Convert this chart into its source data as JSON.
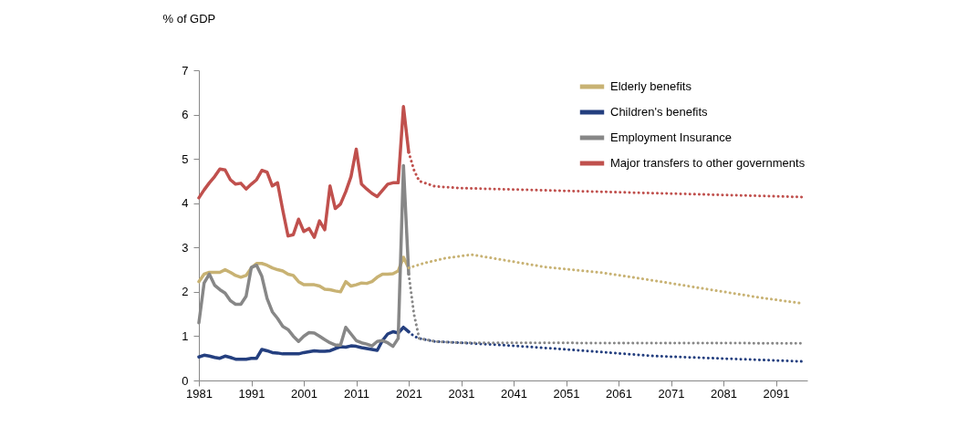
{
  "chart_data": {
    "type": "line",
    "ylabel": "% of GDP",
    "xlim": [
      1981,
      2097
    ],
    "xticks": [
      1981,
      1991,
      2001,
      2011,
      2021,
      2031,
      2041,
      2051,
      2061,
      2071,
      2081,
      2091
    ],
    "ylim": [
      0,
      7
    ],
    "yticks": [
      0,
      1,
      2,
      3,
      4,
      5,
      6,
      7
    ],
    "grid": false,
    "legend": "top right",
    "marker": "none",
    "series": [
      {
        "name": "Elderly benefits",
        "color": "#c8b273",
        "line_style": "solid",
        "x": [
          1981,
          1982,
          1983,
          1984,
          1985,
          1986,
          1987,
          1988,
          1989,
          1990,
          1991,
          1992,
          1993,
          1994,
          1995,
          1996,
          1997,
          1998,
          1999,
          2000,
          2001,
          2002,
          2003,
          2004,
          2005,
          2006,
          2007,
          2008,
          2009,
          2010,
          2011,
          2012,
          2013,
          2014,
          2015,
          2016,
          2017,
          2018,
          2019,
          2020,
          2021
        ],
        "values": [
          2.23,
          2.4,
          2.44,
          2.44,
          2.44,
          2.5,
          2.44,
          2.37,
          2.33,
          2.37,
          2.54,
          2.64,
          2.64,
          2.6,
          2.54,
          2.5,
          2.47,
          2.4,
          2.37,
          2.23,
          2.16,
          2.16,
          2.16,
          2.13,
          2.06,
          2.05,
          2.02,
          2.0,
          2.23,
          2.13,
          2.16,
          2.2,
          2.19,
          2.23,
          2.33,
          2.4,
          2.4,
          2.41,
          2.47,
          2.78,
          2.54
        ]
      },
      {
        "name": "Children's benefits",
        "color": "#243f7f",
        "line_style": "solid",
        "x": [
          1981,
          1982,
          1983,
          1984,
          1985,
          1986,
          1987,
          1988,
          1989,
          1990,
          1991,
          1992,
          1993,
          1994,
          1995,
          1996,
          1997,
          1998,
          1999,
          2000,
          2001,
          2002,
          2003,
          2004,
          2005,
          2006,
          2007,
          2008,
          2009,
          2010,
          2011,
          2012,
          2013,
          2014,
          2015,
          2016,
          2017,
          2018,
          2019,
          2020,
          2021
        ],
        "values": [
          0.53,
          0.57,
          0.55,
          0.52,
          0.5,
          0.55,
          0.52,
          0.48,
          0.48,
          0.48,
          0.5,
          0.5,
          0.7,
          0.67,
          0.63,
          0.62,
          0.6,
          0.6,
          0.6,
          0.6,
          0.63,
          0.65,
          0.67,
          0.66,
          0.66,
          0.67,
          0.72,
          0.76,
          0.75,
          0.78,
          0.77,
          0.74,
          0.72,
          0.7,
          0.68,
          0.9,
          1.05,
          1.1,
          1.07,
          1.2,
          1.1
        ]
      },
      {
        "name": "Employment Insurance",
        "color": "#878787",
        "line_style": "solid",
        "x": [
          1981,
          1982,
          1983,
          1984,
          1985,
          1986,
          1987,
          1988,
          1989,
          1990,
          1991,
          1992,
          1993,
          1994,
          1995,
          1996,
          1997,
          1998,
          1999,
          2000,
          2001,
          2002,
          2003,
          2004,
          2005,
          2006,
          2007,
          2008,
          2009,
          2010,
          2011,
          2012,
          2013,
          2014,
          2015,
          2016,
          2017,
          2018,
          2019,
          2020,
          2021
        ],
        "values": [
          1.3,
          2.2,
          2.4,
          2.15,
          2.05,
          1.97,
          1.8,
          1.72,
          1.72,
          1.9,
          2.55,
          2.6,
          2.35,
          1.85,
          1.55,
          1.4,
          1.22,
          1.15,
          1.0,
          0.88,
          1.0,
          1.08,
          1.07,
          1.0,
          0.92,
          0.85,
          0.8,
          0.8,
          1.2,
          1.05,
          0.9,
          0.85,
          0.82,
          0.78,
          0.88,
          0.9,
          0.85,
          0.77,
          0.95,
          4.85,
          2.4
        ]
      },
      {
        "name": "Major transfers to other governments",
        "color": "#c0504d",
        "line_style": "solid",
        "x": [
          1981,
          1982,
          1983,
          1984,
          1985,
          1986,
          1987,
          1988,
          1989,
          1990,
          1991,
          1992,
          1993,
          1994,
          1995,
          1996,
          1997,
          1998,
          1999,
          2000,
          2001,
          2002,
          2003,
          2004,
          2005,
          2006,
          2007,
          2008,
          2009,
          2010,
          2011,
          2012,
          2013,
          2014,
          2015,
          2016,
          2017,
          2018,
          2019,
          2020,
          2021
        ],
        "values": [
          4.12,
          4.3,
          4.46,
          4.6,
          4.77,
          4.75,
          4.53,
          4.43,
          4.45,
          4.32,
          4.43,
          4.53,
          4.74,
          4.7,
          4.39,
          4.46,
          3.84,
          3.26,
          3.29,
          3.64,
          3.36,
          3.43,
          3.23,
          3.6,
          3.4,
          4.39,
          3.88,
          3.98,
          4.26,
          4.6,
          5.22,
          4.43,
          4.32,
          4.22,
          4.15,
          4.29,
          4.43,
          4.46,
          4.46,
          6.18,
          5.15
        ]
      },
      {
        "color": "#c8b273",
        "line_style": "dotted",
        "x": [
          2021,
          2024,
          2028,
          2033,
          2040,
          2047,
          2058,
          2068,
          2079,
          2088,
          2096
        ],
        "values": [
          2.54,
          2.65,
          2.76,
          2.84,
          2.7,
          2.56,
          2.43,
          2.25,
          2.04,
          1.87,
          1.74
        ]
      },
      {
        "color": "#243f7f",
        "line_style": "dotted",
        "x": [
          2021,
          2022,
          2023,
          2026,
          2031,
          2040,
          2050,
          2068,
          2096
        ],
        "values": [
          1.1,
          1.0,
          0.95,
          0.88,
          0.85,
          0.79,
          0.71,
          0.55,
          0.43
        ]
      },
      {
        "color": "#878787",
        "line_style": "dotted",
        "x": [
          2021,
          2022,
          2023,
          2026,
          2031,
          2096
        ],
        "values": [
          2.4,
          1.5,
          0.95,
          0.88,
          0.85,
          0.84
        ]
      },
      {
        "color": "#c0504d",
        "line_style": "dotted",
        "x": [
          2021,
          2022,
          2023,
          2026,
          2031,
          2096
        ],
        "values": [
          5.15,
          4.75,
          4.5,
          4.38,
          4.34,
          4.14
        ]
      }
    ]
  }
}
